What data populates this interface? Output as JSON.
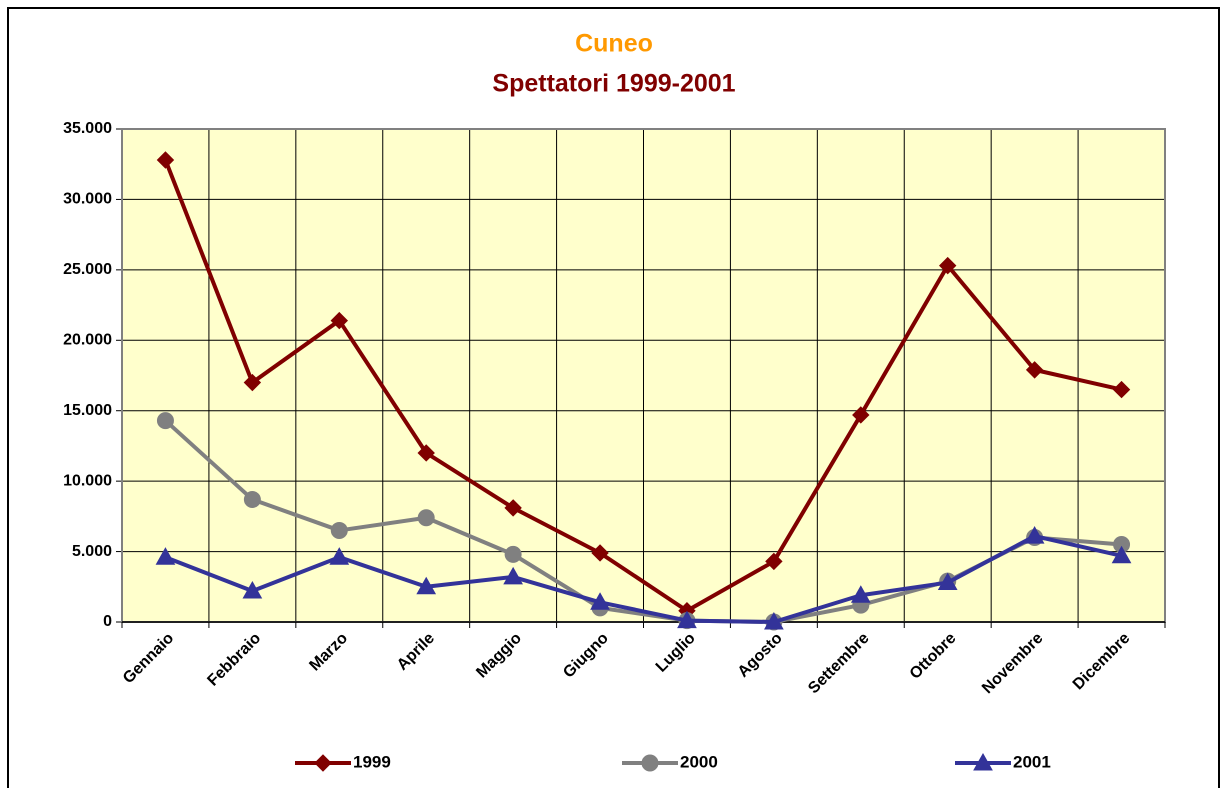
{
  "chart_data": {
    "type": "line",
    "title": "Cuneo",
    "subtitle": "Spettatori 1999-2001",
    "categories": [
      "Gennaio",
      "Febbraio",
      "Marzo",
      "Aprile",
      "Maggio",
      "Giugno",
      "Luglio",
      "Agosto",
      "Settembre",
      "Ottobre",
      "Novembre",
      "Dicembre"
    ],
    "series": [
      {
        "name": "1999",
        "color": "#800000",
        "marker": "diamond",
        "values": [
          32800,
          17000,
          21400,
          12000,
          8100,
          4900,
          800,
          4300,
          14700,
          25300,
          17900,
          16500
        ]
      },
      {
        "name": "2000",
        "color": "#808080",
        "marker": "circle",
        "values": [
          14300,
          8700,
          6500,
          7400,
          4800,
          1000,
          100,
          0,
          1200,
          2900,
          6000,
          5500
        ]
      },
      {
        "name": "2001",
        "color": "#333399",
        "marker": "triangle",
        "values": [
          4600,
          2200,
          4600,
          2500,
          3200,
          1400,
          100,
          0,
          1900,
          2800,
          6100,
          4700
        ]
      }
    ],
    "ylim": [
      0,
      35000
    ],
    "yticks": [
      0,
      {
        "value": 5000,
        "label": "5.000"
      },
      {
        "value": 10000,
        "label": "10.000"
      },
      {
        "value": 15000,
        "label": "15.000"
      },
      {
        "value": 20000,
        "label": "20.000"
      },
      {
        "value": 25000,
        "label": "25.000"
      },
      {
        "value": 30000,
        "label": "30.000"
      },
      {
        "value": 35000,
        "label": "35.000"
      }
    ],
    "grid": true,
    "legend": "bottom"
  }
}
